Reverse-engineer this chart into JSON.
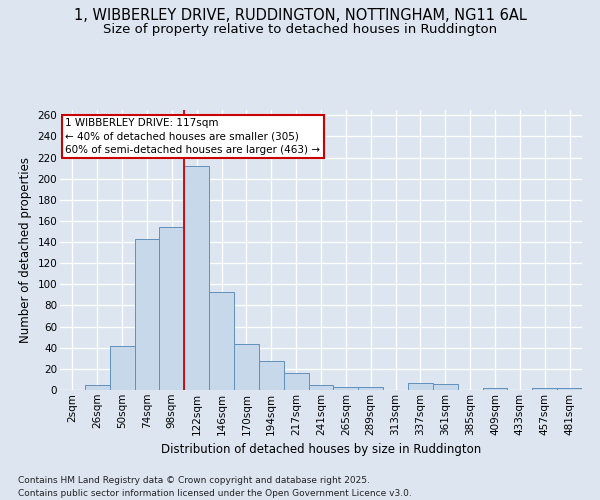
{
  "title_line1": "1, WIBBERLEY DRIVE, RUDDINGTON, NOTTINGHAM, NG11 6AL",
  "title_line2": "Size of property relative to detached houses in Ruddington",
  "xlabel": "Distribution of detached houses by size in Ruddington",
  "ylabel": "Number of detached properties",
  "categories": [
    "2sqm",
    "26sqm",
    "50sqm",
    "74sqm",
    "98sqm",
    "122sqm",
    "146sqm",
    "170sqm",
    "194sqm",
    "217sqm",
    "241sqm",
    "265sqm",
    "289sqm",
    "313sqm",
    "337sqm",
    "361sqm",
    "385sqm",
    "409sqm",
    "433sqm",
    "457sqm",
    "481sqm"
  ],
  "values": [
    0,
    5,
    42,
    143,
    154,
    212,
    93,
    44,
    27,
    16,
    5,
    3,
    3,
    0,
    7,
    6,
    0,
    2,
    0,
    2,
    2
  ],
  "bar_color": "#c8d8eb",
  "bar_edge_color": "#6090bb",
  "bar_edge_width": 0.7,
  "vline_idx": 5,
  "vline_color": "#cc0000",
  "annotation_title": "1 WIBBERLEY DRIVE: 117sqm",
  "annotation_line1": "← 40% of detached houses are smaller (305)",
  "annotation_line2": "60% of semi-detached houses are larger (463) →",
  "annotation_box_color": "#cc0000",
  "annotation_fill": "white",
  "ylim": [
    0,
    265
  ],
  "yticks": [
    0,
    20,
    40,
    60,
    80,
    100,
    120,
    140,
    160,
    180,
    200,
    220,
    240,
    260
  ],
  "bg_color": "#dde6f0",
  "plot_bg_color": "#dde6f0",
  "grid_color": "white",
  "footnote": "Contains HM Land Registry data © Crown copyright and database right 2025.\nContains public sector information licensed under the Open Government Licence v3.0.",
  "title_fontsize": 10.5,
  "subtitle_fontsize": 9.5,
  "axis_label_fontsize": 8.5,
  "tick_fontsize": 7.5,
  "annotation_fontsize": 7.5,
  "footnote_fontsize": 6.5
}
